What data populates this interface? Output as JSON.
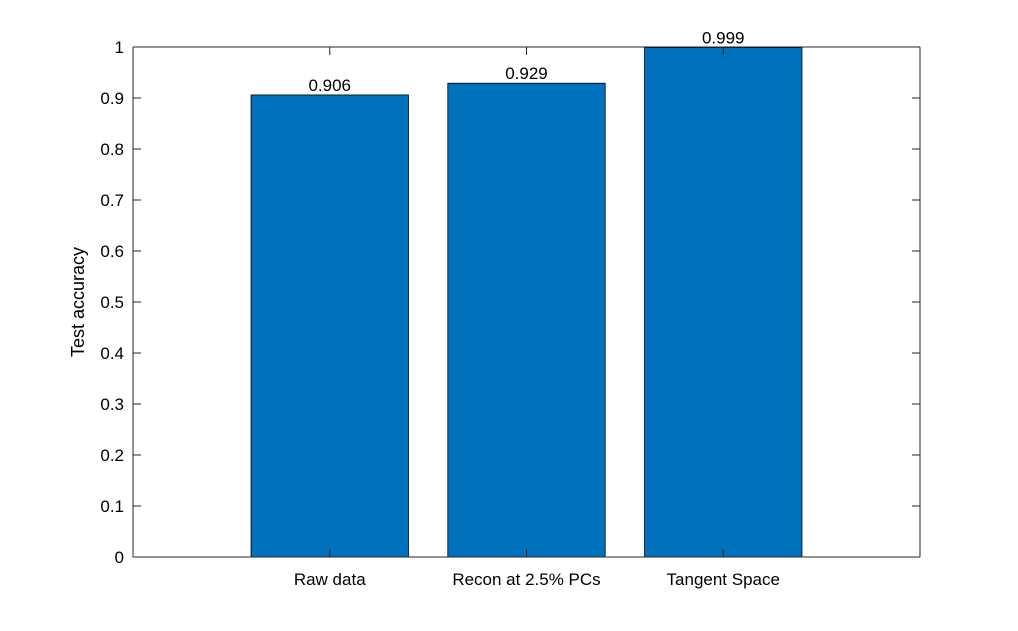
{
  "chart_data": {
    "type": "bar",
    "categories": [
      "Raw data",
      "Recon at 2.5% PCs",
      "Tangent Space"
    ],
    "values": [
      0.906,
      0.929,
      0.999
    ],
    "data_labels": [
      "0.906",
      "0.929",
      "0.999"
    ],
    "title": "",
    "xlabel": "",
    "ylabel": "Test accuracy",
    "ylim": [
      0,
      1
    ],
    "yticks": [
      0,
      0.1,
      0.2,
      0.3,
      0.4,
      0.5,
      0.6,
      0.7,
      0.8,
      0.9,
      1
    ],
    "ytick_labels": [
      "0",
      "0.1",
      "0.2",
      "0.3",
      "0.4",
      "0.5",
      "0.6",
      "0.7",
      "0.8",
      "0.9",
      "1"
    ],
    "grid": false,
    "bar_color": "#0072BD",
    "bar_edge_color": "#000000",
    "axis_color": "#262626"
  }
}
